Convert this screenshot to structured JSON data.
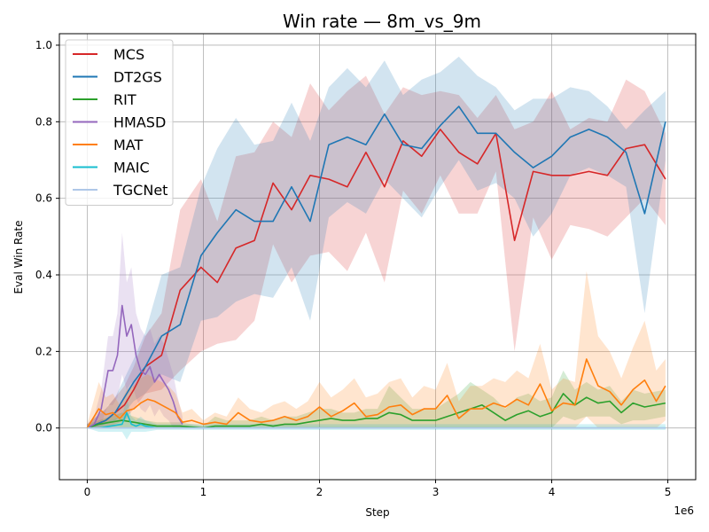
{
  "chart_data": {
    "type": "line",
    "title": "Win rate — 8m_vs_9m",
    "xlabel": "Step",
    "ylabel": "Eval Win Rate",
    "x_offset_label": "1e6",
    "xlim": [
      -0.24,
      5.24
    ],
    "ylim": [
      -0.135,
      1.03
    ],
    "xticks": [
      0,
      1,
      2,
      3,
      4,
      5
    ],
    "yticks": [
      0.0,
      0.2,
      0.4,
      0.6,
      0.8,
      1.0
    ],
    "xtick_labels": [
      "0",
      "1",
      "2",
      "3",
      "4",
      "5"
    ],
    "ytick_labels": [
      "0.0",
      "0.2",
      "0.4",
      "0.6",
      "0.8",
      "1.0"
    ],
    "grid": true,
    "legend_position": "top-left",
    "series": [
      {
        "name": "MCS",
        "color": "#d62728",
        "x": [
          0,
          0.08,
          0.16,
          0.24,
          0.32,
          0.4,
          0.5,
          0.64,
          0.8,
          0.98,
          1.12,
          1.28,
          1.44,
          1.6,
          1.76,
          1.92,
          2.08,
          2.24,
          2.4,
          2.56,
          2.72,
          2.88,
          3.04,
          3.2,
          3.36,
          3.52,
          3.68,
          3.84,
          4.0,
          4.16,
          4.32,
          4.48,
          4.64,
          4.8,
          4.98
        ],
        "y": [
          0,
          0.01,
          0.02,
          0.04,
          0.06,
          0.1,
          0.16,
          0.19,
          0.36,
          0.42,
          0.38,
          0.47,
          0.49,
          0.64,
          0.57,
          0.66,
          0.65,
          0.63,
          0.72,
          0.63,
          0.75,
          0.71,
          0.78,
          0.72,
          0.69,
          0.77,
          0.49,
          0.67,
          0.66,
          0.66,
          0.67,
          0.66,
          0.73,
          0.74,
          0.65
        ],
        "lower": [
          0,
          0,
          0,
          0.01,
          0.02,
          0.05,
          0.09,
          0.1,
          0.15,
          0.2,
          0.22,
          0.23,
          0.28,
          0.48,
          0.38,
          0.45,
          0.46,
          0.41,
          0.51,
          0.38,
          0.62,
          0.56,
          0.66,
          0.56,
          0.56,
          0.67,
          0.2,
          0.55,
          0.44,
          0.53,
          0.52,
          0.5,
          0.55,
          0.6,
          0.53
        ],
        "upper": [
          0.01,
          0.03,
          0.05,
          0.08,
          0.11,
          0.16,
          0.24,
          0.3,
          0.57,
          0.65,
          0.54,
          0.71,
          0.72,
          0.8,
          0.76,
          0.9,
          0.83,
          0.88,
          0.92,
          0.82,
          0.89,
          0.87,
          0.88,
          0.87,
          0.81,
          0.87,
          0.78,
          0.8,
          0.88,
          0.78,
          0.81,
          0.8,
          0.91,
          0.88,
          0.77
        ]
      },
      {
        "name": "DT2GS",
        "color": "#1f77b4",
        "x": [
          0,
          0.08,
          0.16,
          0.24,
          0.32,
          0.4,
          0.5,
          0.64,
          0.8,
          0.98,
          1.12,
          1.28,
          1.44,
          1.6,
          1.76,
          1.92,
          2.08,
          2.24,
          2.4,
          2.56,
          2.72,
          2.88,
          3.04,
          3.2,
          3.36,
          3.52,
          3.68,
          3.84,
          4.0,
          4.16,
          4.32,
          4.48,
          4.64,
          4.8,
          4.98
        ],
        "y": [
          0,
          0.01,
          0.02,
          0.04,
          0.08,
          0.12,
          0.16,
          0.24,
          0.27,
          0.45,
          0.51,
          0.57,
          0.54,
          0.54,
          0.63,
          0.54,
          0.74,
          0.76,
          0.74,
          0.82,
          0.74,
          0.73,
          0.79,
          0.84,
          0.77,
          0.77,
          0.72,
          0.68,
          0.71,
          0.76,
          0.78,
          0.76,
          0.72,
          0.56,
          0.8
        ],
        "lower": [
          0,
          0,
          0.01,
          0.02,
          0.04,
          0.07,
          0.09,
          0.14,
          0.12,
          0.28,
          0.29,
          0.33,
          0.35,
          0.34,
          0.42,
          0.28,
          0.55,
          0.59,
          0.56,
          0.65,
          0.6,
          0.55,
          0.63,
          0.7,
          0.62,
          0.64,
          0.6,
          0.5,
          0.56,
          0.66,
          0.68,
          0.66,
          0.63,
          0.3,
          0.7
        ],
        "upper": [
          0.01,
          0.03,
          0.05,
          0.08,
          0.13,
          0.18,
          0.25,
          0.4,
          0.42,
          0.63,
          0.73,
          0.81,
          0.74,
          0.75,
          0.85,
          0.75,
          0.89,
          0.94,
          0.89,
          0.96,
          0.87,
          0.91,
          0.93,
          0.97,
          0.92,
          0.89,
          0.83,
          0.86,
          0.86,
          0.89,
          0.88,
          0.84,
          0.78,
          0.83,
          0.88
        ]
      },
      {
        "name": "RIT",
        "color": "#2ca02c",
        "x": [
          0,
          0.1,
          0.2,
          0.3,
          0.4,
          0.5,
          0.6,
          0.7,
          0.8,
          1.0,
          1.1,
          1.2,
          1.3,
          1.4,
          1.5,
          1.6,
          1.7,
          1.8,
          1.9,
          2.0,
          2.1,
          2.2,
          2.3,
          2.4,
          2.5,
          2.6,
          2.7,
          2.8,
          2.9,
          3.0,
          3.1,
          3.2,
          3.3,
          3.4,
          3.5,
          3.6,
          3.7,
          3.8,
          3.9,
          4.0,
          4.1,
          4.2,
          4.3,
          4.4,
          4.5,
          4.6,
          4.7,
          4.8,
          4.98
        ],
        "y": [
          0,
          0.01,
          0.015,
          0.02,
          0.015,
          0.01,
          0.005,
          0.005,
          0.005,
          0,
          0.005,
          0.005,
          0.005,
          0.005,
          0.01,
          0.005,
          0.01,
          0.01,
          0.015,
          0.02,
          0.025,
          0.02,
          0.02,
          0.025,
          0.025,
          0.04,
          0.035,
          0.02,
          0.02,
          0.02,
          0.03,
          0.04,
          0.05,
          0.06,
          0.04,
          0.02,
          0.035,
          0.045,
          0.03,
          0.04,
          0.09,
          0.06,
          0.08,
          0.065,
          0.07,
          0.04,
          0.065,
          0.055,
          0.065
        ],
        "lower": [
          0,
          0,
          0,
          0,
          0,
          0,
          0,
          0,
          0,
          0,
          0,
          0,
          0,
          0,
          0,
          0,
          0,
          0,
          0,
          0,
          0,
          0,
          0,
          0,
          0,
          0,
          0,
          0,
          0,
          0,
          0,
          0,
          0,
          0,
          0,
          0,
          0,
          0,
          0,
          0,
          0.03,
          0.02,
          0.03,
          0.03,
          0.03,
          0.01,
          0.02,
          0.02,
          0.03
        ],
        "upper": [
          0.01,
          0.02,
          0.03,
          0.04,
          0.03,
          0.02,
          0.015,
          0.015,
          0.015,
          0.005,
          0.03,
          0.02,
          0.02,
          0.02,
          0.03,
          0.02,
          0.03,
          0.03,
          0.04,
          0.05,
          0.05,
          0.04,
          0.04,
          0.05,
          0.05,
          0.11,
          0.08,
          0.05,
          0.05,
          0.05,
          0.07,
          0.09,
          0.12,
          0.1,
          0.08,
          0.05,
          0.08,
          0.09,
          0.07,
          0.08,
          0.15,
          0.1,
          0.12,
          0.1,
          0.11,
          0.07,
          0.1,
          0.09,
          0.1
        ]
      },
      {
        "name": "HMASD",
        "color": "#9467bd",
        "x": [
          0,
          0.06,
          0.12,
          0.18,
          0.22,
          0.26,
          0.3,
          0.34,
          0.38,
          0.42,
          0.46,
          0.5,
          0.54,
          0.58,
          0.62,
          0.66,
          0.7,
          0.74,
          0.78,
          0.82
        ],
        "y": [
          0,
          0.01,
          0.05,
          0.15,
          0.15,
          0.19,
          0.32,
          0.24,
          0.27,
          0.19,
          0.15,
          0.14,
          0.16,
          0.12,
          0.14,
          0.12,
          0.1,
          0.07,
          0.03,
          0.01
        ],
        "lower": [
          0,
          0,
          0.01,
          0.06,
          0.06,
          0.08,
          0.14,
          0.1,
          0.12,
          0.08,
          0.05,
          0.04,
          0.06,
          0.03,
          0.05,
          0.03,
          0.02,
          0,
          0,
          0
        ],
        "upper": [
          0.01,
          0.03,
          0.1,
          0.24,
          0.24,
          0.3,
          0.51,
          0.38,
          0.42,
          0.3,
          0.26,
          0.24,
          0.26,
          0.22,
          0.24,
          0.22,
          0.18,
          0.14,
          0.08,
          0.03
        ]
      },
      {
        "name": "MAT",
        "color": "#ff7f0e",
        "x": [
          0,
          0.1,
          0.16,
          0.22,
          0.28,
          0.34,
          0.4,
          0.46,
          0.52,
          0.58,
          0.64,
          0.7,
          0.76,
          0.82,
          0.9,
          1.0,
          1.1,
          1.2,
          1.3,
          1.4,
          1.5,
          1.6,
          1.7,
          1.8,
          1.9,
          2.0,
          2.1,
          2.2,
          2.3,
          2.4,
          2.5,
          2.6,
          2.7,
          2.8,
          2.9,
          3.0,
          3.1,
          3.2,
          3.3,
          3.4,
          3.5,
          3.6,
          3.7,
          3.8,
          3.9,
          4.0,
          4.1,
          4.2,
          4.3,
          4.4,
          4.5,
          4.6,
          4.7,
          4.8,
          4.9,
          4.98
        ],
        "y": [
          0,
          0.05,
          0.035,
          0.04,
          0.025,
          0.045,
          0.05,
          0.065,
          0.075,
          0.07,
          0.06,
          0.05,
          0.04,
          0.015,
          0.02,
          0.01,
          0.015,
          0.01,
          0.04,
          0.02,
          0.015,
          0.02,
          0.03,
          0.02,
          0.03,
          0.055,
          0.03,
          0.045,
          0.065,
          0.03,
          0.035,
          0.055,
          0.06,
          0.035,
          0.05,
          0.05,
          0.085,
          0.025,
          0.05,
          0.05,
          0.065,
          0.055,
          0.075,
          0.06,
          0.115,
          0.045,
          0.065,
          0.06,
          0.18,
          0.11,
          0.095,
          0.06,
          0.1,
          0.125,
          0.07,
          0.11
        ],
        "lower": [
          0,
          0,
          0,
          0,
          0,
          0,
          0,
          0,
          0,
          0,
          0,
          0,
          0,
          0,
          0,
          0,
          0,
          0,
          0,
          0,
          0,
          0,
          0,
          0,
          0,
          0,
          0,
          0,
          0,
          0,
          0,
          0,
          0,
          0,
          0,
          0,
          0,
          0,
          0,
          0,
          0,
          0,
          0,
          0,
          0,
          0,
          0,
          0,
          0.03,
          0,
          0,
          0,
          0,
          0,
          0,
          0.02
        ],
        "upper": [
          0.01,
          0.12,
          0.08,
          0.09,
          0.06,
          0.1,
          0.11,
          0.13,
          0.14,
          0.13,
          0.12,
          0.11,
          0.09,
          0.04,
          0.05,
          0.02,
          0.04,
          0.03,
          0.08,
          0.05,
          0.04,
          0.06,
          0.07,
          0.05,
          0.07,
          0.12,
          0.08,
          0.1,
          0.13,
          0.08,
          0.09,
          0.12,
          0.13,
          0.08,
          0.11,
          0.1,
          0.17,
          0.07,
          0.11,
          0.11,
          0.13,
          0.12,
          0.15,
          0.13,
          0.22,
          0.1,
          0.13,
          0.12,
          0.41,
          0.24,
          0.2,
          0.13,
          0.21,
          0.28,
          0.15,
          0.18
        ]
      },
      {
        "name": "MAIC",
        "color": "#17becf",
        "x": [
          0,
          0.1,
          0.2,
          0.3,
          0.34,
          0.38,
          0.42,
          0.46,
          0.5,
          0.6,
          0.7,
          0.8,
          1.0,
          1.5,
          2.0,
          2.5,
          3.0,
          3.5,
          4.0,
          4.5,
          4.98
        ],
        "y": [
          0,
          0,
          0.005,
          0.01,
          0.04,
          0.01,
          0.005,
          0.01,
          0.005,
          0,
          0,
          0,
          0,
          0,
          0,
          0,
          0,
          0,
          0,
          0,
          0
        ],
        "lower": [
          0,
          -0.01,
          -0.01,
          -0.01,
          -0.03,
          -0.01,
          -0.01,
          -0.01,
          -0.01,
          -0.005,
          -0.005,
          -0.005,
          -0.005,
          -0.005,
          -0.005,
          -0.005,
          -0.005,
          -0.005,
          -0.005,
          -0.005,
          -0.005
        ],
        "upper": [
          0.005,
          0.01,
          0.02,
          0.03,
          0.08,
          0.03,
          0.02,
          0.03,
          0.02,
          0.01,
          0.01,
          0.01,
          0.01,
          0.01,
          0.01,
          0.01,
          0.01,
          0.01,
          0.01,
          0.01,
          0.01
        ]
      },
      {
        "name": "TGCNet",
        "color": "#aec7e8",
        "x": [
          0,
          0.5,
          1.0,
          1.5,
          2.0,
          2.5,
          3.0,
          3.5,
          4.0,
          4.5,
          4.98
        ],
        "y": [
          0,
          0,
          0,
          0,
          0,
          0,
          0,
          0,
          0,
          0,
          0
        ],
        "lower": [
          0,
          0,
          0,
          0,
          0,
          0,
          0,
          0,
          0,
          0,
          0
        ],
        "upper": [
          0,
          0,
          0,
          0,
          0,
          0,
          0,
          0,
          0,
          0,
          0
        ]
      }
    ]
  }
}
